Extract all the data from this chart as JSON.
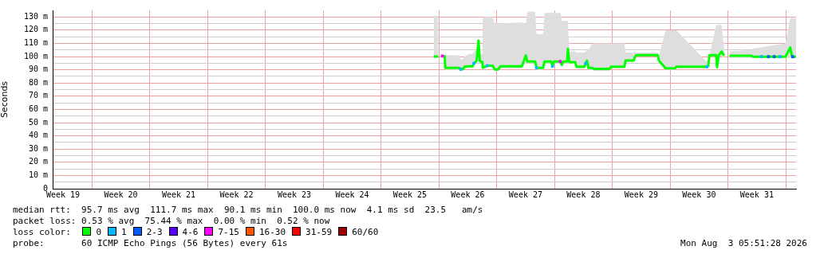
{
  "chart_data": {
    "type": "line",
    "ylabel": "Seconds",
    "legend_title": "loss color:",
    "legend": "bottom",
    "grid": true,
    "line_style": "solid",
    "xlim": [
      "2026-05-05T05:51",
      "2026-08-03T05:51"
    ],
    "ylim": [
      0,
      135
    ],
    "xticks": [
      {
        "value": "2026-05-06T12:00",
        "label": "Week 19"
      },
      {
        "value": "2026-05-10T00:00",
        "label": null
      },
      {
        "value": "2026-05-13T12:00",
        "label": "Week 20"
      },
      {
        "value": "2026-05-17T00:00",
        "label": null
      },
      {
        "value": "2026-05-20T12:00",
        "label": "Week 21"
      },
      {
        "value": "2026-05-24T00:00",
        "label": null
      },
      {
        "value": "2026-05-27T12:00",
        "label": "Week 22"
      },
      {
        "value": "2026-05-31T00:00",
        "label": null
      },
      {
        "value": "2026-06-03T12:00",
        "label": "Week 23"
      },
      {
        "value": "2026-06-07T00:00",
        "label": null
      },
      {
        "value": "2026-06-10T12:00",
        "label": "Week 24"
      },
      {
        "value": "2026-06-14T00:00",
        "label": null
      },
      {
        "value": "2026-06-17T12:00",
        "label": "Week 25"
      },
      {
        "value": "2026-06-21T00:00",
        "label": null
      },
      {
        "value": "2026-06-24T12:00",
        "label": "Week 26"
      },
      {
        "value": "2026-06-28T00:00",
        "label": null
      },
      {
        "value": "2026-07-01T12:00",
        "label": "Week 27"
      },
      {
        "value": "2026-07-05T00:00",
        "label": null
      },
      {
        "value": "2026-07-08T12:00",
        "label": "Week 28"
      },
      {
        "value": "2026-07-12T00:00",
        "label": null
      },
      {
        "value": "2026-07-15T12:00",
        "label": "Week 29"
      },
      {
        "value": "2026-07-19T00:00",
        "label": null
      },
      {
        "value": "2026-07-22T12:00",
        "label": "Week 30"
      },
      {
        "value": "2026-07-26T00:00",
        "label": null
      },
      {
        "value": "2026-07-29T12:00",
        "label": "Week 31"
      },
      {
        "value": "2026-08-02T00:00",
        "label": null
      }
    ],
    "yticks": [
      {
        "value": 0,
        "label": "0"
      },
      {
        "value": 5,
        "label": null
      },
      {
        "value": 10,
        "label": "10 m"
      },
      {
        "value": 15,
        "label": null
      },
      {
        "value": 20,
        "label": "20 m"
      },
      {
        "value": 25,
        "label": null
      },
      {
        "value": 30,
        "label": "30 m"
      },
      {
        "value": 35,
        "label": null
      },
      {
        "value": 40,
        "label": "40 m"
      },
      {
        "value": 45,
        "label": null
      },
      {
        "value": 50,
        "label": "50 m"
      },
      {
        "value": 55,
        "label": null
      },
      {
        "value": 60,
        "label": "60 m"
      },
      {
        "value": 65,
        "label": null
      },
      {
        "value": 70,
        "label": "70 m"
      },
      {
        "value": 75,
        "label": null
      },
      {
        "value": 80,
        "label": "80 m"
      },
      {
        "value": 85,
        "label": null
      },
      {
        "value": 90,
        "label": "90 m"
      },
      {
        "value": 95,
        "label": null
      },
      {
        "value": 100,
        "label": "100 m"
      },
      {
        "value": 105,
        "label": null
      },
      {
        "value": 110,
        "label": "110 m"
      },
      {
        "value": 115,
        "label": null
      },
      {
        "value": 120,
        "label": "120 m"
      },
      {
        "value": 125,
        "label": null
      },
      {
        "value": 130,
        "label": "130 m"
      }
    ],
    "series": [
      {
        "name": "0",
        "color": "#00ff00",
        "x": [
          "2026-06-20T09:00",
          "2026-06-20T22:19",
          "2026-06-21T03:22",
          "2026-06-21T10:05",
          "2026-06-21T16:48",
          "2026-06-21T18:29",
          "2026-06-23T10:48",
          "2026-06-23T15:10",
          "2026-06-23T22:34",
          "2026-06-24T02:46",
          "2026-06-24T14:31",
          "2026-06-25T02:07",
          "2026-06-25T05:59",
          "2026-06-25T13:42",
          "2026-06-25T19:05",
          "2026-06-25T22:57",
          "2026-06-26T03:39",
          "2026-06-26T06:40",
          "2026-06-26T07:31",
          "2026-06-26T20:37",
          "2026-06-27T12:14",
          "2026-06-27T18:17",
          "2026-06-28T03:32",
          "2026-06-28T11:15",
          "2026-07-01T01:05",
          "2026-07-01T12:50",
          "2026-07-01T16:42",
          "2026-07-02T15:53",
          "2026-07-02T19:45",
          "2026-07-03T15:04",
          "2026-07-03T18:56",
          "2026-07-04T14:15",
          "2026-07-04T18:07",
          "2026-07-04T21:59",
          "2026-07-05T17:18",
          "2026-07-05T21:10",
          "2026-07-06T01:02",
          "2026-07-06T12:37",
          "2026-07-06T14:59",
          "2026-07-06T18:50",
          "2026-07-07T11:48",
          "2026-07-07T15:40",
          "2026-07-08T14:51",
          "2026-07-08T18:43",
          "2026-07-08T22:35",
          "2026-07-09T02:37",
          "2026-07-09T14:12",
          "2026-07-09T18:04",
          "2026-07-11T16:26",
          "2026-07-11T20:18",
          "2026-07-13T10:57",
          "2026-07-13T14:48",
          "2026-07-14T14:00",
          "2026-07-14T17:51",
          "2026-07-14T21:43",
          "2026-07-17T11:43",
          "2026-07-17T15:35",
          "2026-07-18T10:54",
          "2026-07-19T13:57",
          "2026-07-19T17:48",
          "2026-07-23T06:49",
          "2026-07-23T14:33",
          "2026-07-23T18:24",
          "2026-07-24T13:54",
          "2026-07-24T16:05",
          "2026-07-24T21:37",
          "2026-07-25T05:21",
          "2026-07-25T13:05",
          "2026-07-25T20:38",
          "2026-07-26T04:32",
          "2026-07-28T18:22",
          "2026-07-29T02:05",
          "2026-08-01T23:00",
          "2026-08-02T12:46",
          "2026-08-02T18:19",
          "2026-08-03T05:51"
        ],
        "values": [
          100,
          100,
          null,
          100.4,
          100.4,
          91.5,
          91.5,
          90.5,
          90.5,
          92.3,
          92.7,
          92.7,
          94.9,
          96.9,
          112.1,
          96.9,
          95.9,
          95.9,
          91.5,
          93.1,
          93.1,
          90.3,
          90.3,
          92.7,
          92.7,
          100.9,
          96.3,
          96.3,
          91.5,
          91.5,
          96.3,
          96.3,
          92.7,
          96.3,
          96.3,
          93.7,
          96.3,
          96.3,
          105.9,
          95.9,
          95.9,
          92.3,
          92.3,
          94.9,
          96.9,
          91.5,
          91.5,
          90.7,
          90.7,
          92.3,
          92.3,
          97.1,
          97.1,
          99.9,
          101.1,
          101.1,
          96.9,
          91.1,
          91.1,
          92.3,
          92.3,
          92.9,
          101.1,
          101.1,
          91.9,
          101.1,
          103.9,
          100.7,
          null,
          100.7,
          100.7,
          99.9,
          99.9,
          106.9,
          99.9,
          99.9
        ],
        "lower": [
          99,
          99,
          null,
          99,
          99,
          90,
          90,
          89,
          89,
          91,
          92,
          92,
          93,
          95,
          96,
          95,
          95,
          95,
          90,
          92,
          92,
          89,
          89,
          91,
          91,
          95,
          95,
          95,
          90,
          90,
          95,
          95,
          91,
          95,
          95,
          92,
          95,
          95,
          95,
          95,
          95,
          91,
          91,
          93,
          95,
          90,
          90,
          89,
          89,
          91,
          91,
          96,
          96,
          99,
          100,
          100,
          95,
          90,
          90,
          91,
          91,
          92,
          100,
          100,
          91,
          100,
          100,
          99,
          null,
          99,
          99,
          99,
          99,
          99,
          99,
          99
        ],
        "upper": [
          131,
          131,
          null,
          101,
          101,
          101,
          101,
          98,
          98,
          100,
          102,
          102,
          104,
          105,
          115,
          102,
          102,
          102,
          130,
          130,
          130,
          125,
          125,
          125,
          126,
          125,
          134,
          134,
          117,
          117,
          133,
          133,
          133,
          133,
          133,
          127,
          127,
          127,
          127,
          104,
          104,
          103,
          103,
          104,
          106,
          105,
          110,
          110,
          110,
          110,
          110,
          103,
          103,
          104,
          103,
          103,
          101,
          120,
          120,
          120,
          97,
          97,
          101,
          124,
          124,
          124,
          124,
          106,
          null,
          104,
          105,
          106,
          110,
          129,
          129,
          129
        ]
      },
      {
        "name": "1",
        "type": "scatter",
        "color": "#00b8ff",
        "x": [
          "2026-06-23T15:10",
          "2026-06-25T05:59",
          "2026-06-26T20:37",
          "2026-07-02T19:45",
          "2026-07-04T18:07",
          "2026-07-08T18:43",
          "2026-07-23T10:41",
          "2026-07-30T01:26",
          "2026-08-01T07:12"
        ],
        "values": [
          90.5,
          94.9,
          93.1,
          91.5,
          92.7,
          94.9,
          92.3,
          100,
          99.9
        ]
      },
      {
        "name": "2-3",
        "type": "scatter",
        "color": "#0059ff",
        "x": [
          "2026-07-30T21:36",
          "2026-07-31T14:24",
          "2026-08-02T20:10"
        ],
        "values": [
          99.9,
          99.9,
          99.9
        ]
      },
      {
        "name": "4-6",
        "type": "scatter",
        "color": "#5500ff"
      },
      {
        "name": "7-15",
        "type": "scatter",
        "color": "#ff00ff",
        "x": [
          "2026-06-21T10:05",
          "2026-07-05T16:48"
        ],
        "values": [
          100.4,
          96.3
        ]
      },
      {
        "name": "16-30",
        "type": "scatter",
        "color": "#ff5500"
      },
      {
        "name": "31-59",
        "type": "scatter",
        "color": "#ff0000"
      },
      {
        "name": "60/60",
        "type": "scatter",
        "color": "#a10000"
      }
    ],
    "annotations": [
      "median rtt:  95.7 ms avg  111.7 ms max  90.1 ms min  100.0 ms now  4.1 ms sd  23.5   am/s",
      "packet loss: 0.53 % avg  75.44 % max  0.00 % min  0.52 % now",
      "probe:       60 ICMP Echo Pings (56 Bytes) every 61s",
      "Mon Aug  3 05:51:28 2026"
    ]
  }
}
